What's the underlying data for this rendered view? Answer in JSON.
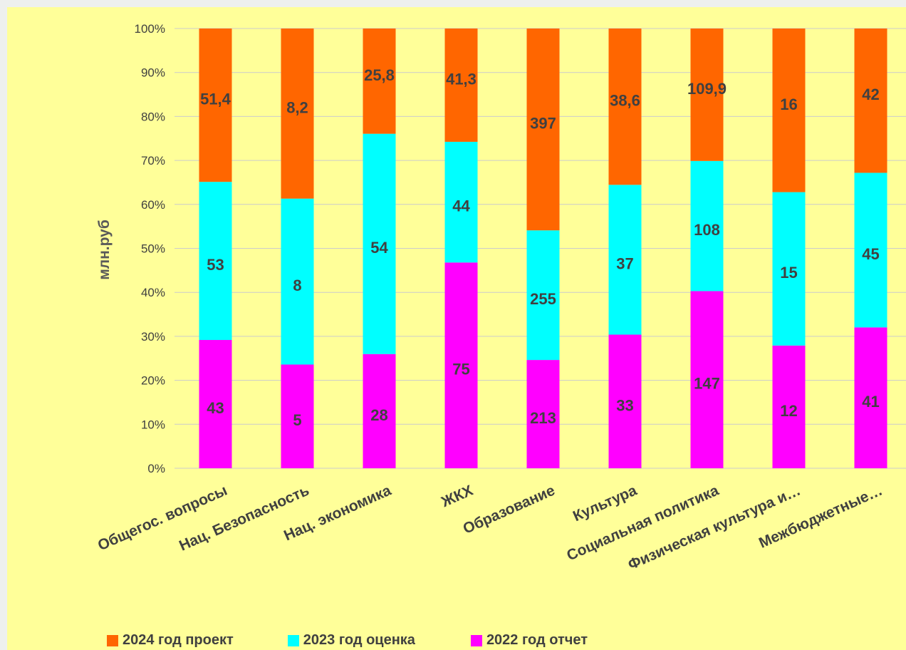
{
  "chart_data": {
    "type": "bar",
    "stacked": "percent",
    "ylabel": "млн.руб",
    "ylim": [
      0,
      100
    ],
    "yticks": [
      "0%",
      "10%",
      "20%",
      "30%",
      "40%",
      "50%",
      "60%",
      "70%",
      "80%",
      "90%",
      "100%"
    ],
    "categories": [
      "Общегос. вопросы",
      "Нац. Безопасность",
      "Нац. экономика",
      "ЖКХ",
      "Образование",
      "Культура",
      "Социальная политика",
      "Физическая культура и…",
      "Межбюджетные…",
      ""
    ],
    "series": [
      {
        "name": "2022 год отчет",
        "color": "#ff00ff",
        "values": [
          43,
          5,
          28,
          75,
          213,
          33,
          147,
          12,
          41,
          null
        ],
        "labels": [
          "43",
          "5",
          "28",
          "75",
          "213",
          "33",
          "147",
          "12",
          "41",
          ""
        ]
      },
      {
        "name": "2023 год оценка",
        "color": "#00ffff",
        "values": [
          53,
          8,
          54,
          44,
          255,
          37,
          108,
          15,
          45,
          null
        ],
        "labels": [
          "53",
          "8",
          "54",
          "44",
          "255",
          "37",
          "108",
          "15",
          "45",
          ""
        ]
      },
      {
        "name": "2024 год проект",
        "color": "#ff6600",
        "values": [
          51.4,
          8.2,
          25.8,
          41.3,
          397,
          38.6,
          109.9,
          16,
          42,
          null
        ],
        "labels": [
          "51,4",
          "8,2",
          "25,8",
          "41,3",
          "397",
          "38,6",
          "109,9",
          "16",
          "42",
          ""
        ]
      }
    ],
    "grid": true,
    "legend": "bottom"
  },
  "legend": {
    "items": [
      {
        "label": "2024 год проект",
        "color": "#ff6600"
      },
      {
        "label": "2023 год оценка",
        "color": "#00ffff"
      },
      {
        "label": "2022 год отчет",
        "color": "#ff00ff"
      }
    ]
  }
}
